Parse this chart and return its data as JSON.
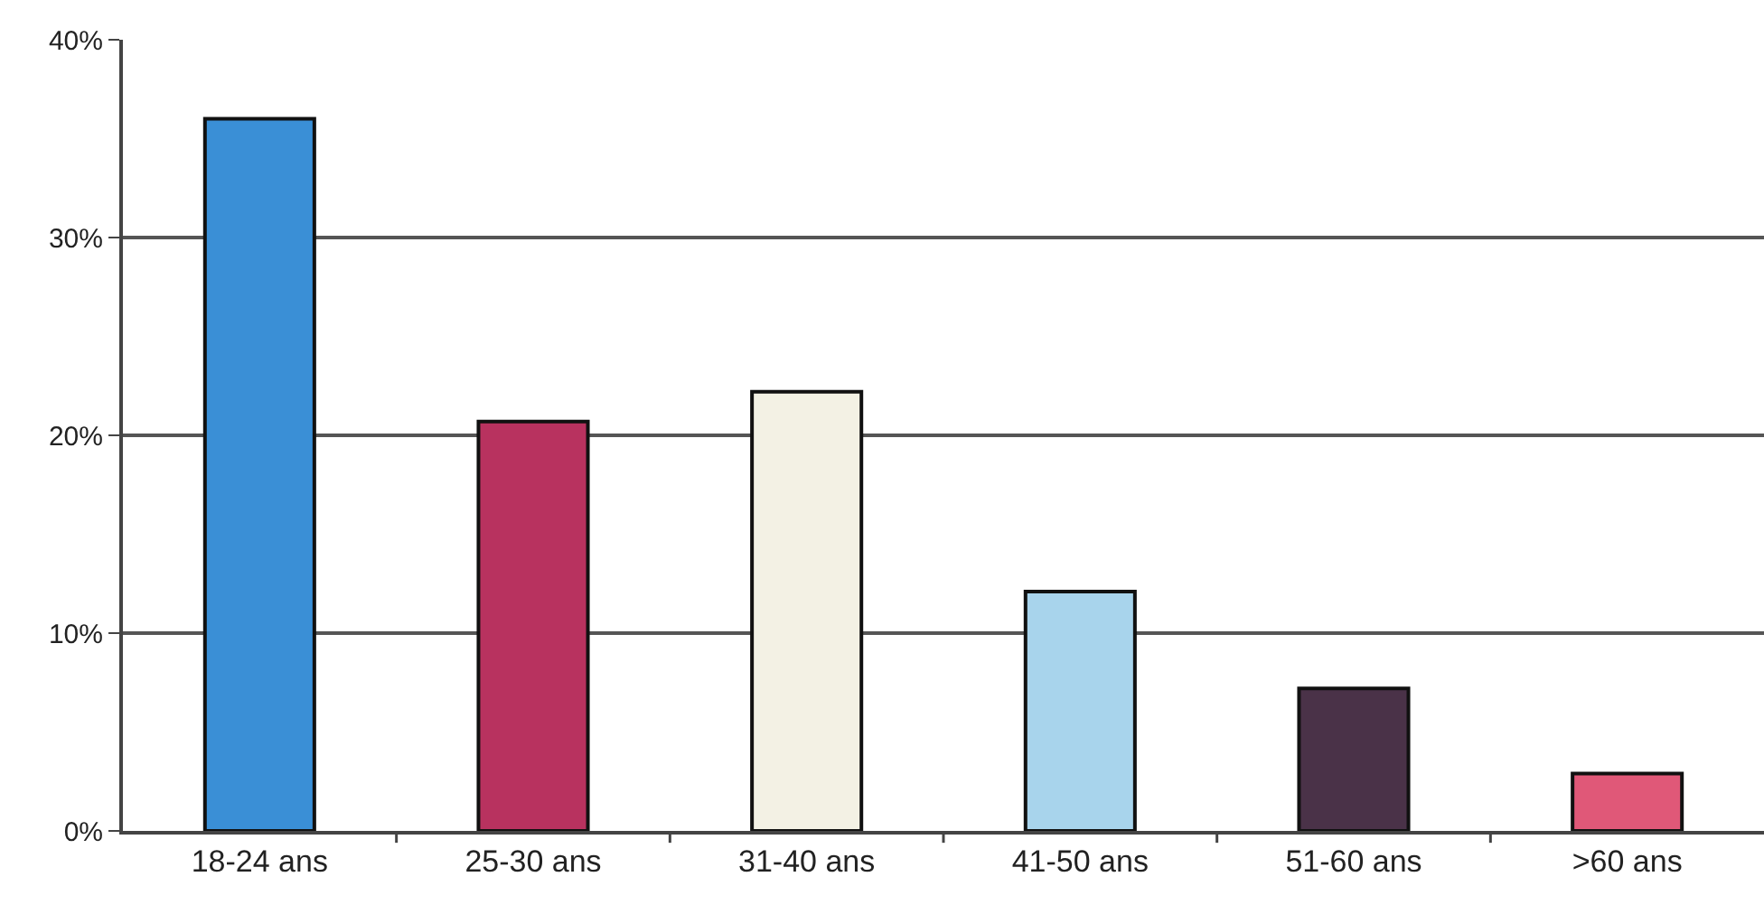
{
  "chart_data": {
    "type": "bar",
    "categories": [
      "18-24 ans",
      "25-30 ans",
      "31-40 ans",
      "41-50 ans",
      "51-60 ans",
      ">60 ans"
    ],
    "values": [
      36,
      20.7,
      22.2,
      12.1,
      7.2,
      2.9
    ],
    "colors": [
      "#3a8fd6",
      "#b8325f",
      "#f3f1e4",
      "#a8d4ec",
      "#4a3248",
      "#e05878"
    ],
    "ylim": [
      0,
      40
    ],
    "yticks": [
      {
        "value": 0,
        "label": "0%"
      },
      {
        "value": 10,
        "label": "10%"
      },
      {
        "value": 20,
        "label": "20%"
      },
      {
        "value": 30,
        "label": "30%"
      },
      {
        "value": 40,
        "label": "40%"
      }
    ],
    "grid": "y",
    "legend": false
  }
}
